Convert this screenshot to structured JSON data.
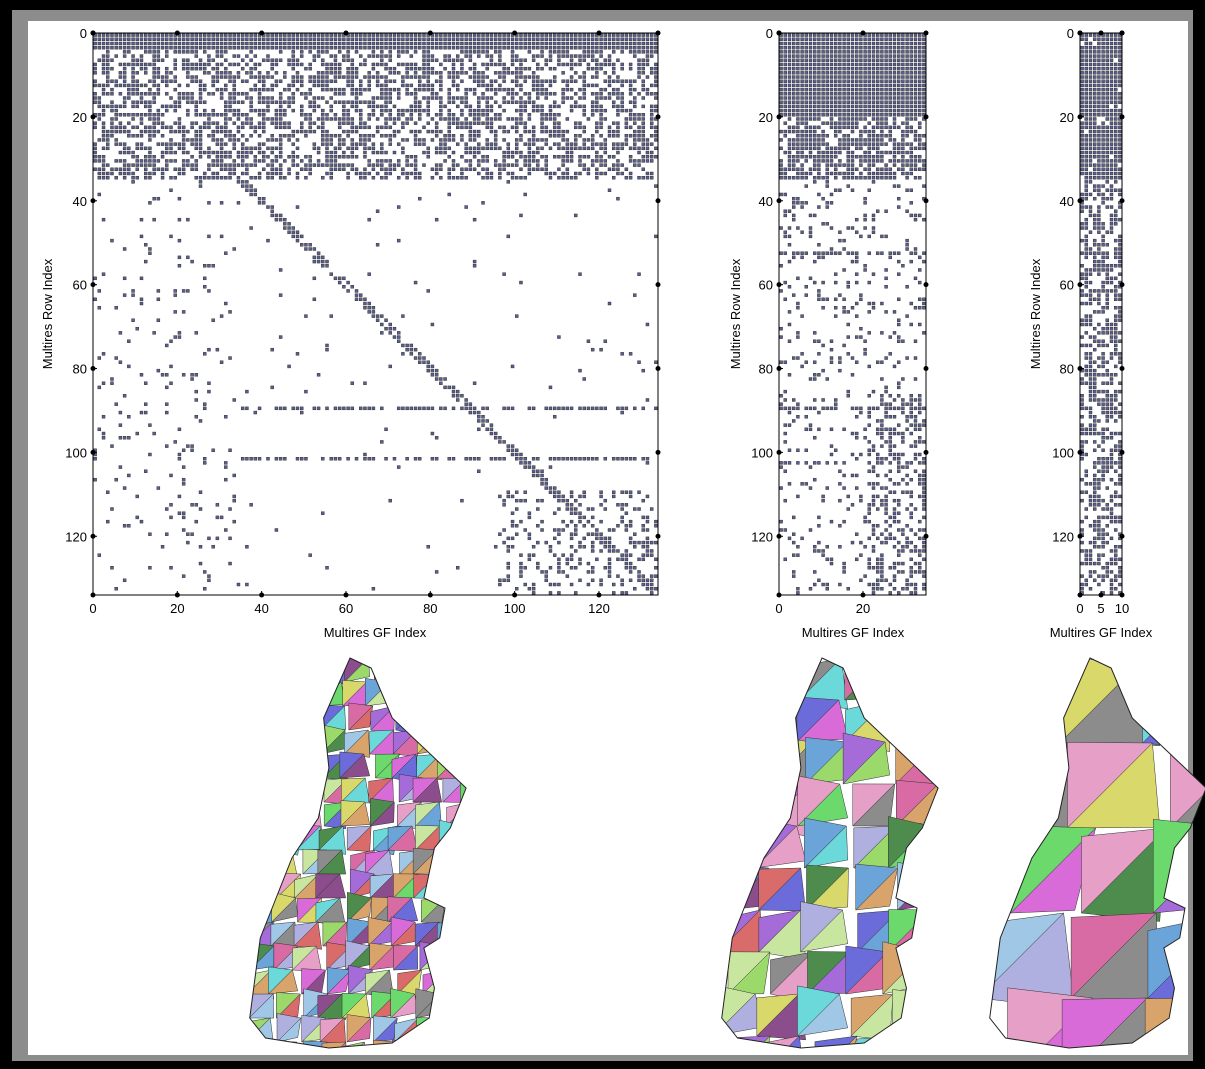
{
  "figure": {
    "panels": [
      {
        "id": "full",
        "xlabel": "Multires GF Index",
        "ylabel": "Multires Row Index",
        "ncols": 134,
        "nrows": 134,
        "xticks": [
          0,
          20,
          40,
          60,
          80,
          100,
          120
        ],
        "yticks": [
          0,
          20,
          40,
          60,
          80,
          100,
          120
        ]
      },
      {
        "id": "medium",
        "xlabel": "Multires GF Index",
        "ylabel": "Multires Row Index",
        "ncols": 35,
        "nrows": 134,
        "xticks": [
          0,
          20
        ],
        "yticks": [
          0,
          20,
          40,
          60,
          80,
          100,
          120
        ]
      },
      {
        "id": "coarse",
        "xlabel": "Multires GF Index",
        "ylabel": "Multires Row Index",
        "ncols": 10,
        "nrows": 134,
        "xticks": [
          0,
          5,
          10
        ],
        "yticks": [
          0,
          20,
          40,
          60,
          80,
          100,
          120
        ]
      }
    ],
    "meshes": [
      {
        "id": "mesh-fine"
      },
      {
        "id": "mesh-medium"
      },
      {
        "id": "mesh-coarse"
      }
    ]
  },
  "chart_data": [
    {
      "type": "heatmap",
      "title": "",
      "xlabel": "Multires GF Index",
      "ylabel": "Multires Row Index",
      "xlim": [
        0,
        134
      ],
      "ylim": [
        0,
        134
      ],
      "xticks": [
        0,
        20,
        40,
        60,
        80,
        100,
        120
      ],
      "yticks": [
        0,
        20,
        40,
        60,
        80,
        100,
        120
      ],
      "structure": "sparsity pattern: dense rows 0-35, band along diagonal, sparse below"
    },
    {
      "type": "heatmap",
      "title": "",
      "xlabel": "Multires GF Index",
      "ylabel": "Multires Row Index",
      "xlim": [
        0,
        35
      ],
      "ylim": [
        0,
        134
      ],
      "xticks": [
        0,
        20
      ],
      "yticks": [
        0,
        20,
        40,
        60,
        80,
        100,
        120
      ],
      "structure": "sparsity pattern: dense rows 0-35, scattered below"
    },
    {
      "type": "heatmap",
      "title": "",
      "xlabel": "Multires GF Index",
      "ylabel": "Multires Row Index",
      "xlim": [
        0,
        10
      ],
      "ylim": [
        0,
        134
      ],
      "xticks": [
        0,
        5,
        10
      ],
      "yticks": [
        0,
        20,
        40,
        60,
        80,
        100,
        120
      ],
      "structure": "sparsity pattern: mostly dense"
    }
  ],
  "colors": {
    "dot": "#5a5f8c",
    "dotEdge": "#222",
    "bg": "#ffffff"
  }
}
